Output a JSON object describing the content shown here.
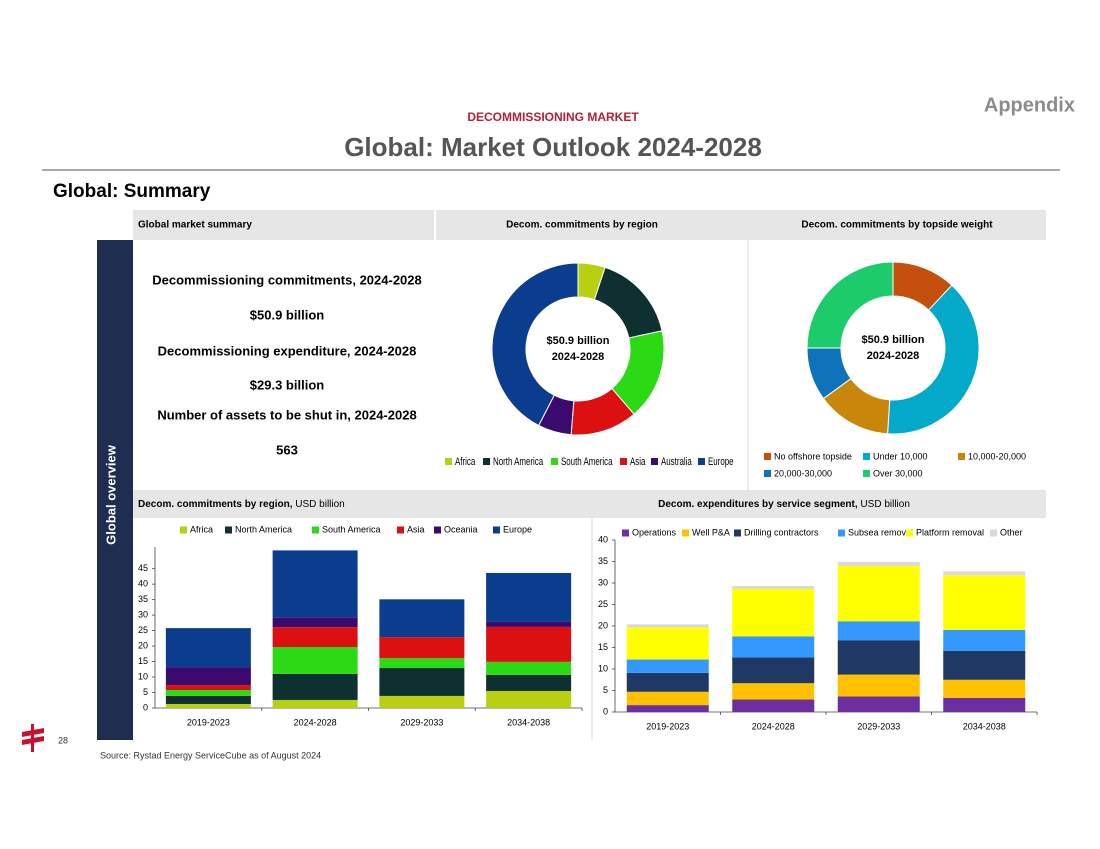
{
  "header": {
    "tag": "Appendix",
    "kicker": "DECOMMISSIONING MARKET",
    "title": "Global: Market Outlook 2024-2028",
    "section": "Global: Summary",
    "side_label": "Global overview"
  },
  "summary": {
    "title": "Global market summary",
    "lines": [
      "Decommissioning commitments, 2024-2028",
      "$50.9 billion",
      "Decommissioning expenditure, 2024-2028",
      "$29.3 billion",
      "Number of assets to be shut in, 2024-2028",
      "563"
    ]
  },
  "chart_data": [
    {
      "type": "donut",
      "title": "Decom. commitments by region",
      "center_text": [
        "$50.9 billion",
        "2024-2028"
      ],
      "categories": [
        "Africa",
        "North America",
        "South America",
        "Asia",
        "Australia",
        "Europe"
      ],
      "values": [
        2.6,
        8.4,
        8.7,
        6.4,
        3.2,
        21.6
      ],
      "colors": [
        "#b8cf12",
        "#0f3030",
        "#2bd915",
        "#dc1010",
        "#3a0a6e",
        "#0b3d8e"
      ]
    },
    {
      "type": "donut",
      "title": "Decom. commitments by topside weight",
      "center_text": [
        "$50.9 billion",
        "2024-2028"
      ],
      "categories": [
        "No offshore topside",
        "Under 10,000",
        "10,000-20,000",
        "20,000-30,000",
        "Over 30,000"
      ],
      "values": [
        12,
        39,
        14,
        10,
        25
      ],
      "colors": [
        "#c5500e",
        "#02a9c9",
        "#c8870a",
        "#0f73bb",
        "#1ccc6a"
      ]
    },
    {
      "type": "stacked-bar",
      "title": "Decom. commitments by region,",
      "unit": "USD billion",
      "categories": [
        "2019-2023",
        "2024-2028",
        "2029-2033",
        "2034-2038"
      ],
      "series": [
        {
          "name": "Africa",
          "color": "#b8cf12",
          "values": [
            1.3,
            2.6,
            3.9,
            5.5
          ]
        },
        {
          "name": "North America",
          "color": "#0f3030",
          "values": [
            2.6,
            8.4,
            9.0,
            5.2
          ]
        },
        {
          "name": "South America",
          "color": "#2bd915",
          "values": [
            1.9,
            8.7,
            3.2,
            4.2
          ]
        },
        {
          "name": "Asia",
          "color": "#dc1010",
          "values": [
            1.6,
            6.4,
            6.8,
            11.3
          ]
        },
        {
          "name": "Oceania",
          "color": "#3a0a6e",
          "values": [
            5.8,
            3.2,
            0,
            1.6
          ]
        },
        {
          "name": "Europe",
          "color": "#0b3d8e",
          "values": [
            12.6,
            21.6,
            12.2,
            15.8
          ]
        }
      ],
      "ylim": [
        0,
        52
      ],
      "yticks": [
        0,
        5,
        10,
        15,
        20,
        25,
        30,
        35,
        40,
        45
      ]
    },
    {
      "type": "stacked-bar",
      "title": "Decom. expenditures by service segment,",
      "unit": "USD billion",
      "categories": [
        "2019-2023",
        "2024-2028",
        "2029-2033",
        "2034-2038"
      ],
      "series": [
        {
          "name": "Operations",
          "color": "#6b2fa0",
          "values": [
            1.6,
            2.9,
            3.6,
            3.3
          ]
        },
        {
          "name": "Well P&A",
          "color": "#ffc000",
          "values": [
            3.1,
            3.8,
            5.1,
            4.2
          ]
        },
        {
          "name": "Drilling contractors",
          "color": "#1f3864",
          "values": [
            4.4,
            6.0,
            8.0,
            6.7
          ]
        },
        {
          "name": "Subsea removal",
          "color": "#3399ff",
          "values": [
            3.1,
            4.9,
            4.4,
            4.9
          ]
        },
        {
          "name": "Platform removal",
          "color": "#ffff00",
          "values": [
            7.5,
            11.0,
            12.9,
            12.7
          ]
        },
        {
          "name": "Other",
          "color": "#d9d9d9",
          "values": [
            0.7,
            0.7,
            0.9,
            0.9
          ]
        }
      ],
      "ylim": [
        0,
        40
      ],
      "yticks": [
        0,
        5,
        10,
        15,
        20,
        25,
        30,
        35,
        40
      ]
    }
  ],
  "footer": {
    "page": "28",
    "source": "Source:  Rystad Energy ServiceCube as of August 2024"
  }
}
